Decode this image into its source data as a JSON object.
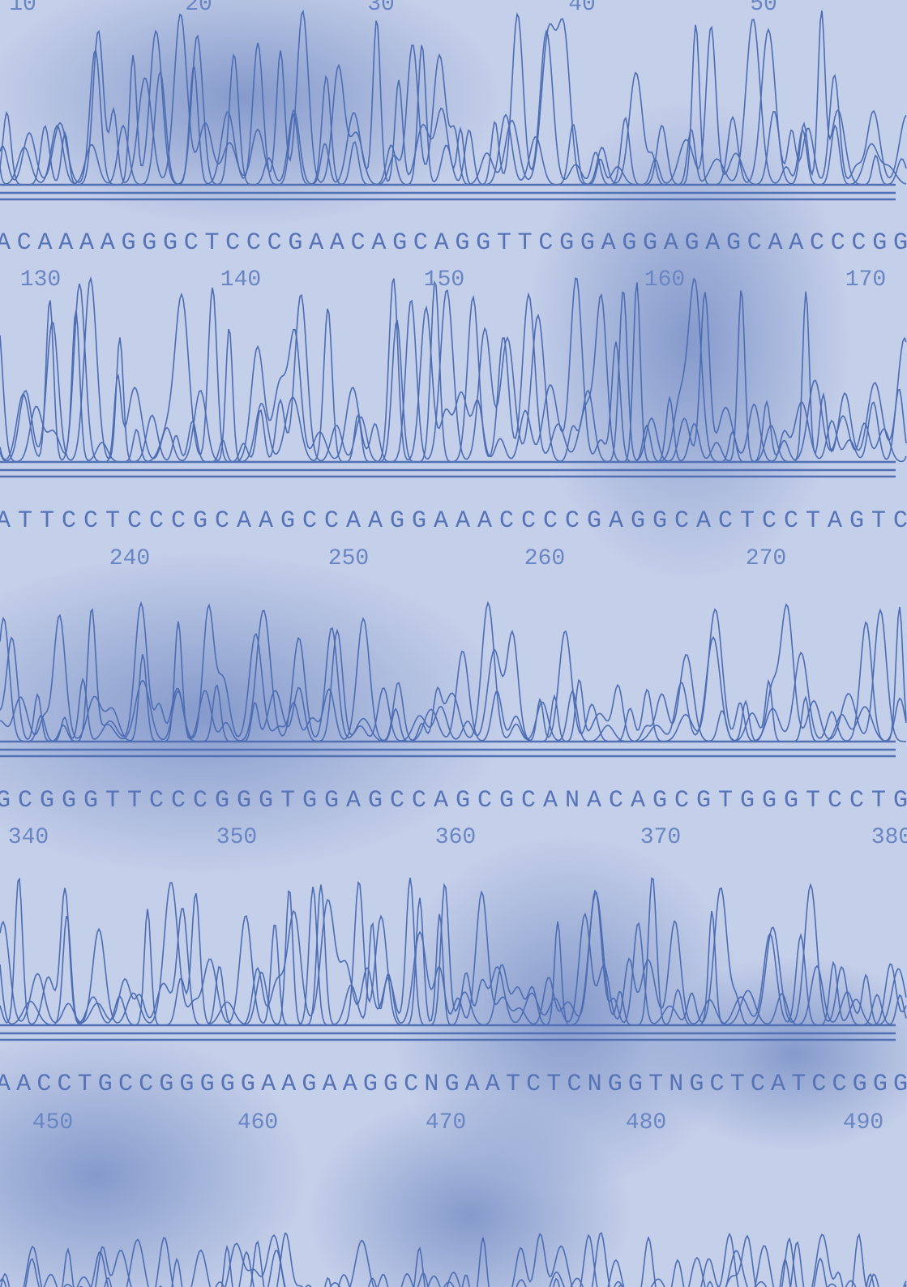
{
  "top_numbers": [
    10,
    20,
    30,
    40,
    50
  ],
  "rows": [
    {
      "sequence": "ACAAAAGGGCTCCCGAACAGCAGGTTCGGAGGAGAGCAACCCGG",
      "numbers": [
        130,
        140,
        150,
        160,
        170
      ]
    },
    {
      "sequence": "ATTCCTCCCGCAAGCCAAGGAAACCCCGAGGCACTCCTAGTC",
      "numbers": [
        240,
        250,
        260,
        270
      ]
    },
    {
      "sequence": "GCGGGTTCCCGGGTGGAGCCAGCGCANACAGCGTGGGTCCTG",
      "numbers": [
        340,
        350,
        360,
        370,
        380
      ]
    },
    {
      "sequence": "AACCTGCCGGGGGAAGAAGGCNGAATCTCNGGTNGCTCATCCGGG",
      "numbers": [
        450,
        460,
        470,
        480,
        490
      ]
    }
  ]
}
